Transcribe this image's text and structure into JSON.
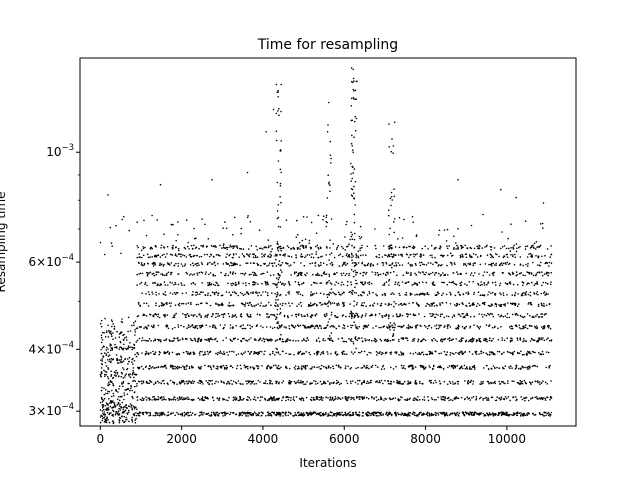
{
  "chart_data": {
    "type": "scatter",
    "title": "Time for resampling",
    "xlabel": "Iterations",
    "ylabel": "Resampling time",
    "xlim": [
      -500,
      11700
    ],
    "ylim": [
      0.00028,
      0.00155
    ],
    "yscale": "log",
    "grid": false,
    "marker_color": "#000000",
    "x_ticks": [
      0,
      2000,
      4000,
      6000,
      8000,
      10000
    ],
    "x_tick_labels": [
      "0",
      "2000",
      "4000",
      "6000",
      "8000",
      "10000"
    ],
    "y_ticks": [
      0.0003,
      0.0004,
      0.0006,
      0.001
    ],
    "y_tick_labels": [
      {
        "mantissa": "3",
        "base": "10",
        "exponent": "−4"
      },
      {
        "mantissa": "4",
        "base": "10",
        "exponent": "−4"
      },
      {
        "mantissa": "6",
        "base": "10",
        "exponent": "−4"
      },
      {
        "mantissa": "",
        "base": "10",
        "exponent": "−3"
      }
    ],
    "series": [
      {
        "x_range": [
          0,
          11100
        ],
        "band_levels": [
          0.000296,
          0.000318,
          0.000343,
          0.000368,
          0.000393,
          0.000418,
          0.000444,
          0.000468,
          0.000493,
          0.000518,
          0.000543,
          0.000568,
          0.000594,
          0.000618,
          0.000643
        ],
        "outliers": [
          {
            "x": 190,
            "y": 0.00082
          },
          {
            "x": 1480,
            "y": 0.00086
          },
          {
            "x": 2750,
            "y": 0.00088
          },
          {
            "x": 3620,
            "y": 0.00091
          },
          {
            "x": 4080,
            "y": 0.0011
          },
          {
            "x": 4260,
            "y": 0.00122
          },
          {
            "x": 4330,
            "y": 0.00137
          },
          {
            "x": 4450,
            "y": 0.00137
          },
          {
            "x": 4380,
            "y": 0.00096
          },
          {
            "x": 5620,
            "y": 0.00126
          },
          {
            "x": 5590,
            "y": 0.0011
          },
          {
            "x": 6180,
            "y": 0.00148
          },
          {
            "x": 6220,
            "y": 0.00147
          },
          {
            "x": 6240,
            "y": 0.00133
          },
          {
            "x": 6310,
            "y": 0.00139
          },
          {
            "x": 6270,
            "y": 0.00118
          },
          {
            "x": 7100,
            "y": 0.00114
          },
          {
            "x": 7240,
            "y": 0.00115
          },
          {
            "x": 8800,
            "y": 0.00088
          },
          {
            "x": 9850,
            "y": 0.00084
          },
          {
            "x": 10230,
            "y": 0.00081
          },
          {
            "x": 10900,
            "y": 0.00079
          }
        ]
      }
    ]
  }
}
